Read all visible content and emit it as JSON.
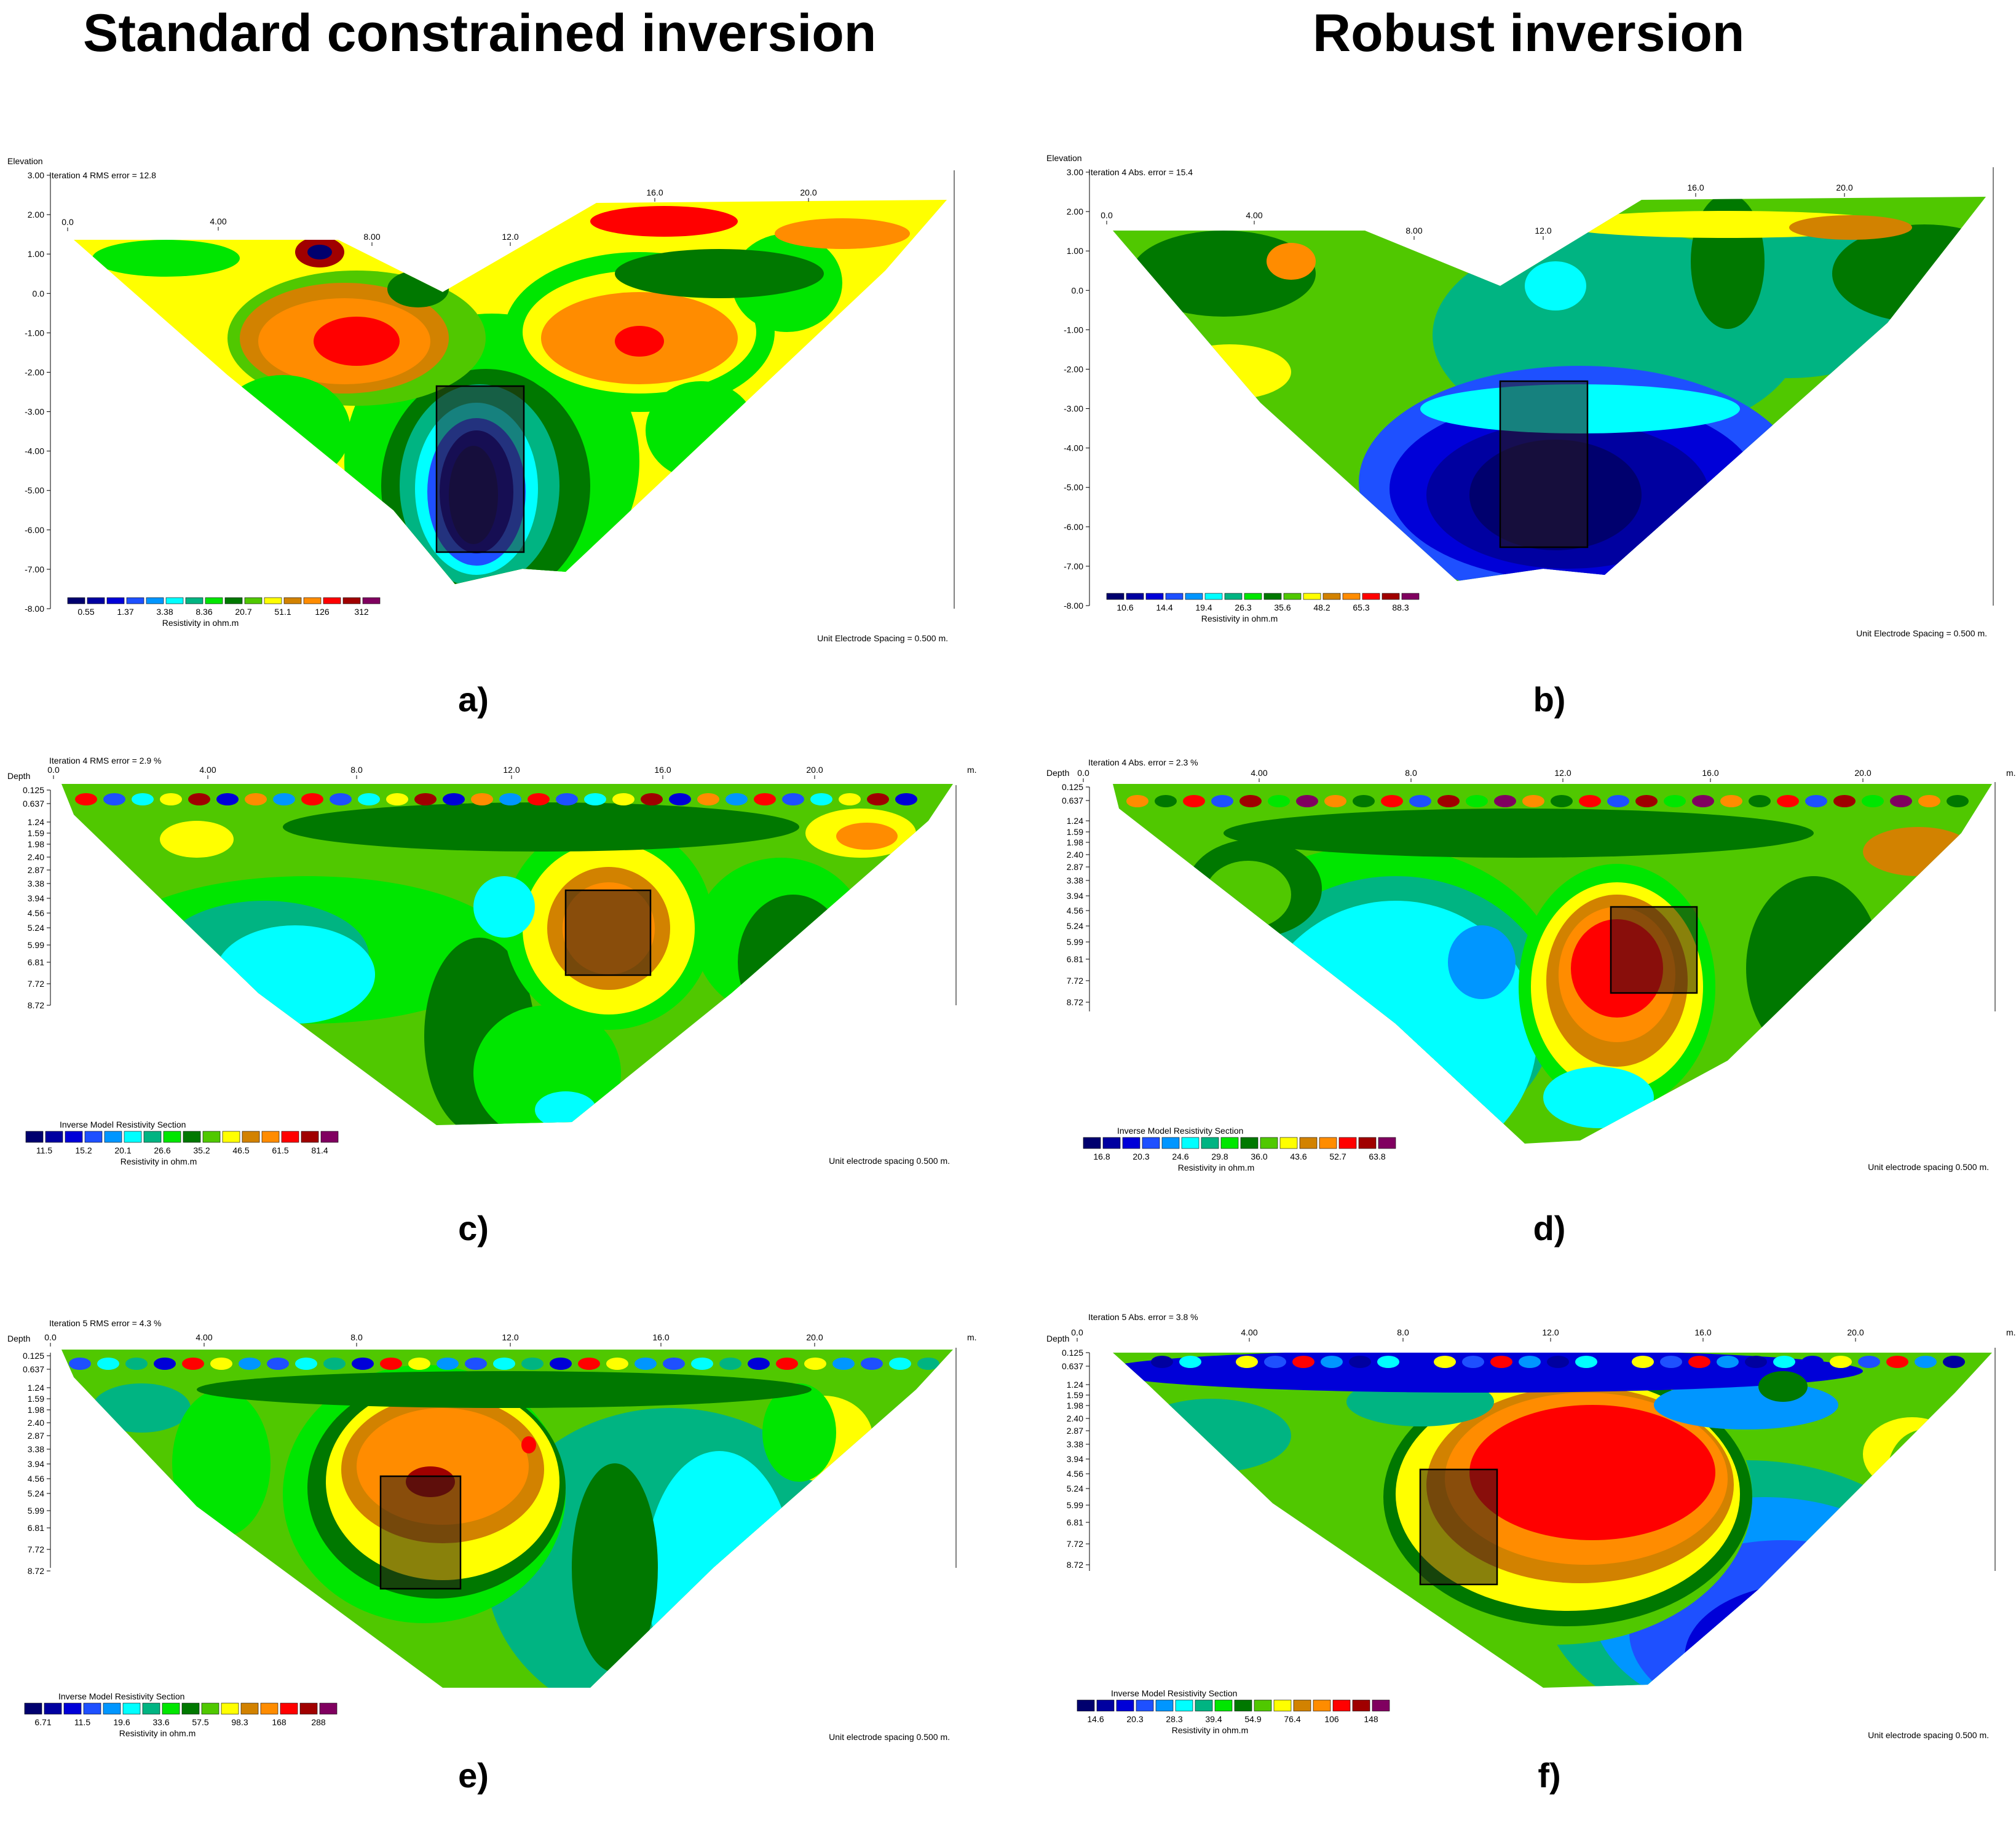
{
  "figure": {
    "column_titles": [
      "Standard constrained inversion",
      "Robust inversion"
    ]
  },
  "palette": [
    "#00006e",
    "#0000a0",
    "#0000d8",
    "#1e50ff",
    "#0096ff",
    "#00ffff",
    "#00b482",
    "#00e600",
    "#007800",
    "#50c800",
    "#ffff00",
    "#d28200",
    "#ff8c00",
    "#ff0000",
    "#a00000",
    "#800060"
  ],
  "panels": [
    {
      "id": "a",
      "caption": "a)",
      "kind": "elevation",
      "left_axis_label": "Elevation",
      "iteration_text": "Iteration 4 RMS error = 12.8",
      "distance_ticks": [
        "0.0",
        "4.00",
        "8.00",
        "12.0",
        "16.0",
        "20.0"
      ],
      "left_ticks": [
        "3.00",
        "2.00",
        "1.00",
        "0.0",
        "-1.00",
        "-2.00",
        "-3.00",
        "-4.00",
        "-5.00",
        "-6.00",
        "-7.00",
        "-8.00"
      ],
      "legend_values": [
        "0.55",
        "1.37",
        "3.38",
        "8.36",
        "20.7",
        "51.1",
        "126",
        "312"
      ],
      "legend_title": "Resistivity in ohm.m",
      "spacing_text": "Unit Electrode Spacing = 0.500 m."
    },
    {
      "id": "b",
      "caption": "b)",
      "kind": "elevation",
      "left_axis_label": "Elevation",
      "iteration_text": "Iteration 4 Abs. error = 15.4",
      "distance_ticks": [
        "0.0",
        "4.00",
        "8.00",
        "12.0",
        "16.0",
        "20.0"
      ],
      "left_ticks": [
        "3.00",
        "2.00",
        "1.00",
        "0.0",
        "-1.00",
        "-2.00",
        "-3.00",
        "-4.00",
        "-5.00",
        "-6.00",
        "-7.00",
        "-8.00"
      ],
      "legend_values": [
        "10.6",
        "14.4",
        "19.4",
        "26.3",
        "35.6",
        "48.2",
        "65.3",
        "88.3"
      ],
      "legend_title": "Resistivity in ohm.m",
      "spacing_text": "Unit Electrode Spacing = 0.500 m."
    },
    {
      "id": "c",
      "caption": "c)",
      "kind": "depth",
      "left_axis_label": "Depth",
      "iteration_text": "Iteration 4 RMS error = 2.9 %",
      "distance_ticks": [
        "0.0",
        "4.00",
        "8.0",
        "12.0",
        "16.0",
        "20.0"
      ],
      "unit_m": "m.",
      "left_ticks": [
        "0.125",
        "0.637",
        "1.24",
        "1.59",
        "1.98",
        "2.40",
        "2.87",
        "3.38",
        "3.94",
        "4.56",
        "5.24",
        "5.99",
        "6.81",
        "7.72",
        "8.72"
      ],
      "section_title": "Inverse Model Resistivity Section",
      "legend_values": [
        "11.5",
        "15.2",
        "20.1",
        "26.6",
        "35.2",
        "46.5",
        "61.5",
        "81.4"
      ],
      "legend_title": "Resistivity in ohm.m",
      "spacing_text": "Unit electrode spacing 0.500 m."
    },
    {
      "id": "d",
      "caption": "d)",
      "kind": "depth",
      "left_axis_label": "Depth",
      "iteration_text": "Iteration 4 Abs. error = 2.3 %",
      "distance_ticks": [
        "0.0",
        "4.00",
        "8.0",
        "12.0",
        "16.0",
        "20.0"
      ],
      "unit_m": "m.",
      "left_ticks": [
        "0.125",
        "0.637",
        "1.24",
        "1.59",
        "1.98",
        "2.40",
        "2.87",
        "3.38",
        "3.94",
        "4.56",
        "5.24",
        "5.99",
        "6.81",
        "7.72",
        "8.72"
      ],
      "section_title": "Inverse Model Resistivity Section",
      "legend_values": [
        "16.8",
        "20.3",
        "24.6",
        "29.8",
        "36.0",
        "43.6",
        "52.7",
        "63.8"
      ],
      "legend_title": "Resistivity in ohm.m",
      "spacing_text": "Unit electrode spacing 0.500 m."
    },
    {
      "id": "e",
      "caption": "e)",
      "kind": "depth",
      "left_axis_label": "Depth",
      "iteration_text": "Iteration 5 RMS error = 4.3 %",
      "distance_ticks": [
        "0.0",
        "4.00",
        "8.0",
        "12.0",
        "16.0",
        "20.0"
      ],
      "unit_m": "m.",
      "left_ticks": [
        "0.125",
        "0.637",
        "1.24",
        "1.59",
        "1.98",
        "2.40",
        "2.87",
        "3.38",
        "3.94",
        "4.56",
        "5.24",
        "5.99",
        "6.81",
        "7.72",
        "8.72"
      ],
      "section_title": "Inverse Model Resistivity Section",
      "legend_values": [
        "6.71",
        "11.5",
        "19.6",
        "33.6",
        "57.5",
        "98.3",
        "168",
        "288"
      ],
      "legend_title": "Resistivity in ohm.m",
      "spacing_text": "Unit electrode spacing 0.500 m."
    },
    {
      "id": "f",
      "caption": "f)",
      "kind": "depth",
      "left_axis_label": "Depth",
      "iteration_text": "Iteration 5 Abs. error = 3.8 %",
      "distance_ticks": [
        "0.0",
        "4.00",
        "8.0",
        "12.0",
        "16.0",
        "20.0"
      ],
      "unit_m": "m.",
      "left_ticks": [
        "0.125",
        "0.637",
        "1.24",
        "1.59",
        "1.98",
        "2.40",
        "2.87",
        "3.38",
        "3.94",
        "4.56",
        "5.24",
        "5.99",
        "6.81",
        "7.72",
        "8.72"
      ],
      "section_title": "Inverse Model Resistivity Section",
      "legend_values": [
        "14.6",
        "20.3",
        "28.3",
        "39.4",
        "54.9",
        "76.4",
        "106",
        "148"
      ],
      "legend_title": "Resistivity in ohm.m",
      "spacing_text": "Unit electrode spacing 0.500 m."
    }
  ]
}
